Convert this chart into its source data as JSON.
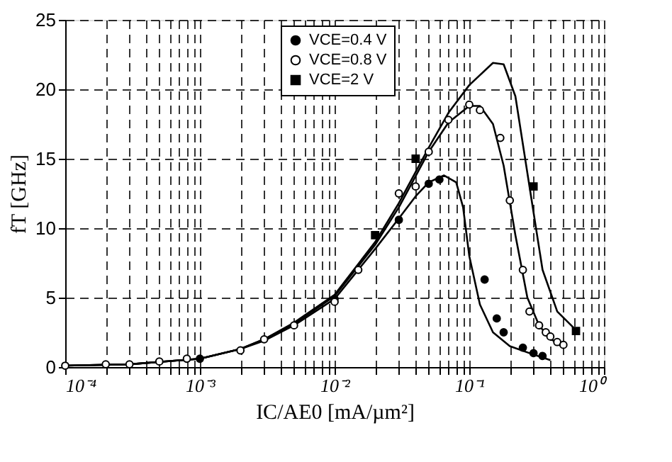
{
  "chart_data": {
    "type": "line",
    "xlabel": "IC/AE0 [mA/µm²]",
    "ylabel": "fT [GHz]",
    "log": "x",
    "xlim": [
      0.0001,
      1
    ],
    "ylim": [
      0,
      25
    ],
    "xticks": [
      {
        "value": 0.0001,
        "label": "10⁻⁴"
      },
      {
        "value": 0.0002,
        "label": null
      },
      {
        "value": 0.0003,
        "label": null
      },
      {
        "value": 0.0004,
        "label": null
      },
      {
        "value": 0.0005,
        "label": null
      },
      {
        "value": 0.0006,
        "label": null
      },
      {
        "value": 0.0007,
        "label": null
      },
      {
        "value": 0.0008,
        "label": null
      },
      {
        "value": 0.0009,
        "label": null
      },
      {
        "value": 0.001,
        "label": "10⁻³"
      },
      {
        "value": 0.002,
        "label": null
      },
      {
        "value": 0.003,
        "label": null
      },
      {
        "value": 0.004,
        "label": null
      },
      {
        "value": 0.005,
        "label": null
      },
      {
        "value": 0.006,
        "label": null
      },
      {
        "value": 0.007,
        "label": null
      },
      {
        "value": 0.008,
        "label": null
      },
      {
        "value": 0.009,
        "label": null
      },
      {
        "value": 0.01,
        "label": "10⁻²"
      },
      {
        "value": 0.02,
        "label": null
      },
      {
        "value": 0.03,
        "label": null
      },
      {
        "value": 0.04,
        "label": null
      },
      {
        "value": 0.05,
        "label": null
      },
      {
        "value": 0.06,
        "label": null
      },
      {
        "value": 0.07,
        "label": null
      },
      {
        "value": 0.08,
        "label": null
      },
      {
        "value": 0.09,
        "label": null
      },
      {
        "value": 0.1,
        "label": "10⁻¹"
      },
      {
        "value": 0.2,
        "label": null
      },
      {
        "value": 0.3,
        "label": null
      },
      {
        "value": 0.4,
        "label": null
      },
      {
        "value": 0.5,
        "label": null
      },
      {
        "value": 0.6,
        "label": null
      },
      {
        "value": 0.7,
        "label": null
      },
      {
        "value": 0.8,
        "label": null
      },
      {
        "value": 0.9,
        "label": null
      },
      {
        "value": 1,
        "label": "10⁰"
      }
    ],
    "yticks": [
      0,
      5,
      10,
      15,
      20,
      25
    ],
    "grid": true,
    "legend": "top",
    "series": [
      {
        "color": "#000000",
        "marker": "none",
        "x": [
          0.0001,
          0.0003,
          0.001,
          0.002,
          0.003,
          0.005,
          0.01,
          0.02,
          0.03,
          0.05,
          0.07,
          0.1,
          0.15,
          0.18,
          0.22,
          0.28,
          0.35,
          0.45,
          0.6
        ],
        "values": [
          0.1,
          0.2,
          0.6,
          1.3,
          2.0,
          3.2,
          5.2,
          9.0,
          11.8,
          15.8,
          18.3,
          20.3,
          21.9,
          21.8,
          19.5,
          13,
          7,
          4,
          2.8
        ]
      },
      {
        "color": "#000000",
        "marker": "none",
        "x": [
          0.0001,
          0.0003,
          0.001,
          0.002,
          0.003,
          0.005,
          0.01,
          0.02,
          0.03,
          0.05,
          0.07,
          0.1,
          0.12,
          0.15,
          0.18,
          0.22,
          0.27,
          0.33,
          0.4,
          0.5
        ],
        "values": [
          0.1,
          0.2,
          0.6,
          1.3,
          2.0,
          3.1,
          5.1,
          8.8,
          11.5,
          15.5,
          17.6,
          18.8,
          18.8,
          17.5,
          14.5,
          9.5,
          5,
          3,
          2,
          1.6
        ]
      },
      {
        "color": "#000000",
        "marker": "none",
        "x": [
          0.0001,
          0.0003,
          0.001,
          0.002,
          0.003,
          0.005,
          0.01,
          0.02,
          0.03,
          0.04,
          0.05,
          0.065,
          0.08,
          0.09,
          0.1,
          0.12,
          0.15,
          0.2,
          0.3,
          0.4
        ],
        "values": [
          0.1,
          0.2,
          0.6,
          1.3,
          1.9,
          3.0,
          4.9,
          8.5,
          10.7,
          12.3,
          13.3,
          13.8,
          13.3,
          11.5,
          8,
          4.5,
          2.5,
          1.5,
          0.9,
          0.5
        ]
      },
      {
        "type": "scatter",
        "name": "VCE=0.4 V",
        "color": "#000000",
        "marker": "circle",
        "x": [
          0.001,
          0.01,
          0.03,
          0.05,
          0.06,
          0.13,
          0.16,
          0.18,
          0.25,
          0.3,
          0.35
        ],
        "values": [
          0.6,
          4.9,
          10.6,
          13.2,
          13.5,
          6.3,
          3.5,
          2.5,
          1.4,
          1.0,
          0.8
        ]
      },
      {
        "type": "scatter",
        "name": "VCE=0.8 V",
        "color": "#ffffff",
        "marker": "circle",
        "x": [
          0.0001,
          0.0002,
          0.0003,
          0.0005,
          0.0008,
          0.002,
          0.003,
          0.005,
          0.01,
          0.015,
          0.03,
          0.04,
          0.05,
          0.07,
          0.1,
          0.12,
          0.17,
          0.2,
          0.25,
          0.28,
          0.33,
          0.37,
          0.4,
          0.45,
          0.5
        ],
        "values": [
          0.1,
          0.2,
          0.2,
          0.4,
          0.6,
          1.2,
          2.0,
          3.0,
          4.7,
          7,
          12.5,
          13,
          15.5,
          17.8,
          18.9,
          18.5,
          16.5,
          12,
          7,
          4,
          3,
          2.5,
          2.2,
          1.8,
          1.6
        ]
      },
      {
        "type": "scatter",
        "name": "VCE=2 V",
        "color": "#000000",
        "marker": "square",
        "x": [
          0.02,
          0.04,
          0.3,
          0.62
        ],
        "values": [
          9.5,
          15,
          13,
          2.6
        ]
      }
    ]
  }
}
